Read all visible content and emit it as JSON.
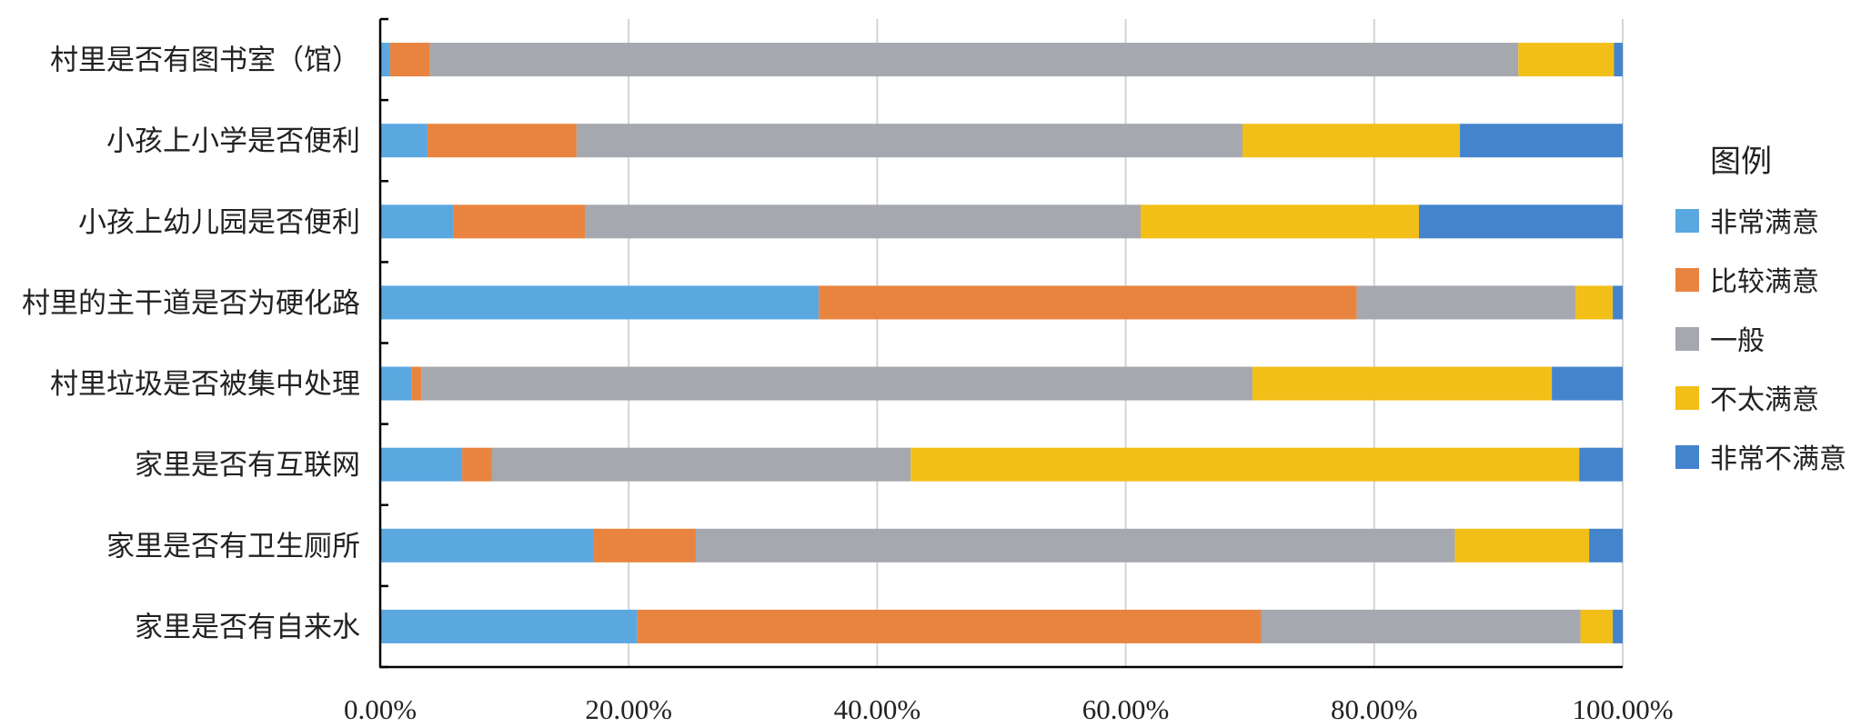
{
  "chart_data": {
    "type": "bar",
    "orientation": "horizontal",
    "stacked": true,
    "percent_stacked": true,
    "categories": [
      "村里是否有图书室（馆）",
      "小孩上小学是否便利",
      "小孩上幼儿园是否便利",
      "村里的主干道是否为硬化路",
      "村里垃圾是否被集中处理",
      "家里是否有互联网",
      "家里是否有卫生厕所",
      "家里是否有自来水"
    ],
    "series": [
      {
        "name": "非常满意",
        "color": "#5ba7e0",
        "values": [
          0.8,
          3.8,
          5.9,
          35.3,
          2.5,
          6.6,
          17.2,
          20.7
        ]
      },
      {
        "name": "比较满意",
        "color": "#e8843f",
        "values": [
          3.2,
          12.0,
          10.6,
          43.3,
          0.8,
          2.4,
          8.2,
          50.2
        ]
      },
      {
        "name": "一般",
        "color": "#a5a8ae",
        "values": [
          87.6,
          53.6,
          44.7,
          17.6,
          66.9,
          33.7,
          61.1,
          25.7
        ]
      },
      {
        "name": "不太满意",
        "color": "#f2bf19",
        "values": [
          7.7,
          17.5,
          22.4,
          3.0,
          24.1,
          53.8,
          10.8,
          2.6
        ]
      },
      {
        "name": "非常不满意",
        "color": "#4484cc",
        "values": [
          0.7,
          13.1,
          16.4,
          0.8,
          5.7,
          3.5,
          2.7,
          0.8
        ]
      }
    ],
    "xlim": [
      0,
      100
    ],
    "xticks": [
      "0.00%",
      "20.00%",
      "40.00%",
      "60.00%",
      "80.00%",
      "100.00%"
    ],
    "grid": true,
    "legend": {
      "title": "图例",
      "position": "right"
    }
  }
}
